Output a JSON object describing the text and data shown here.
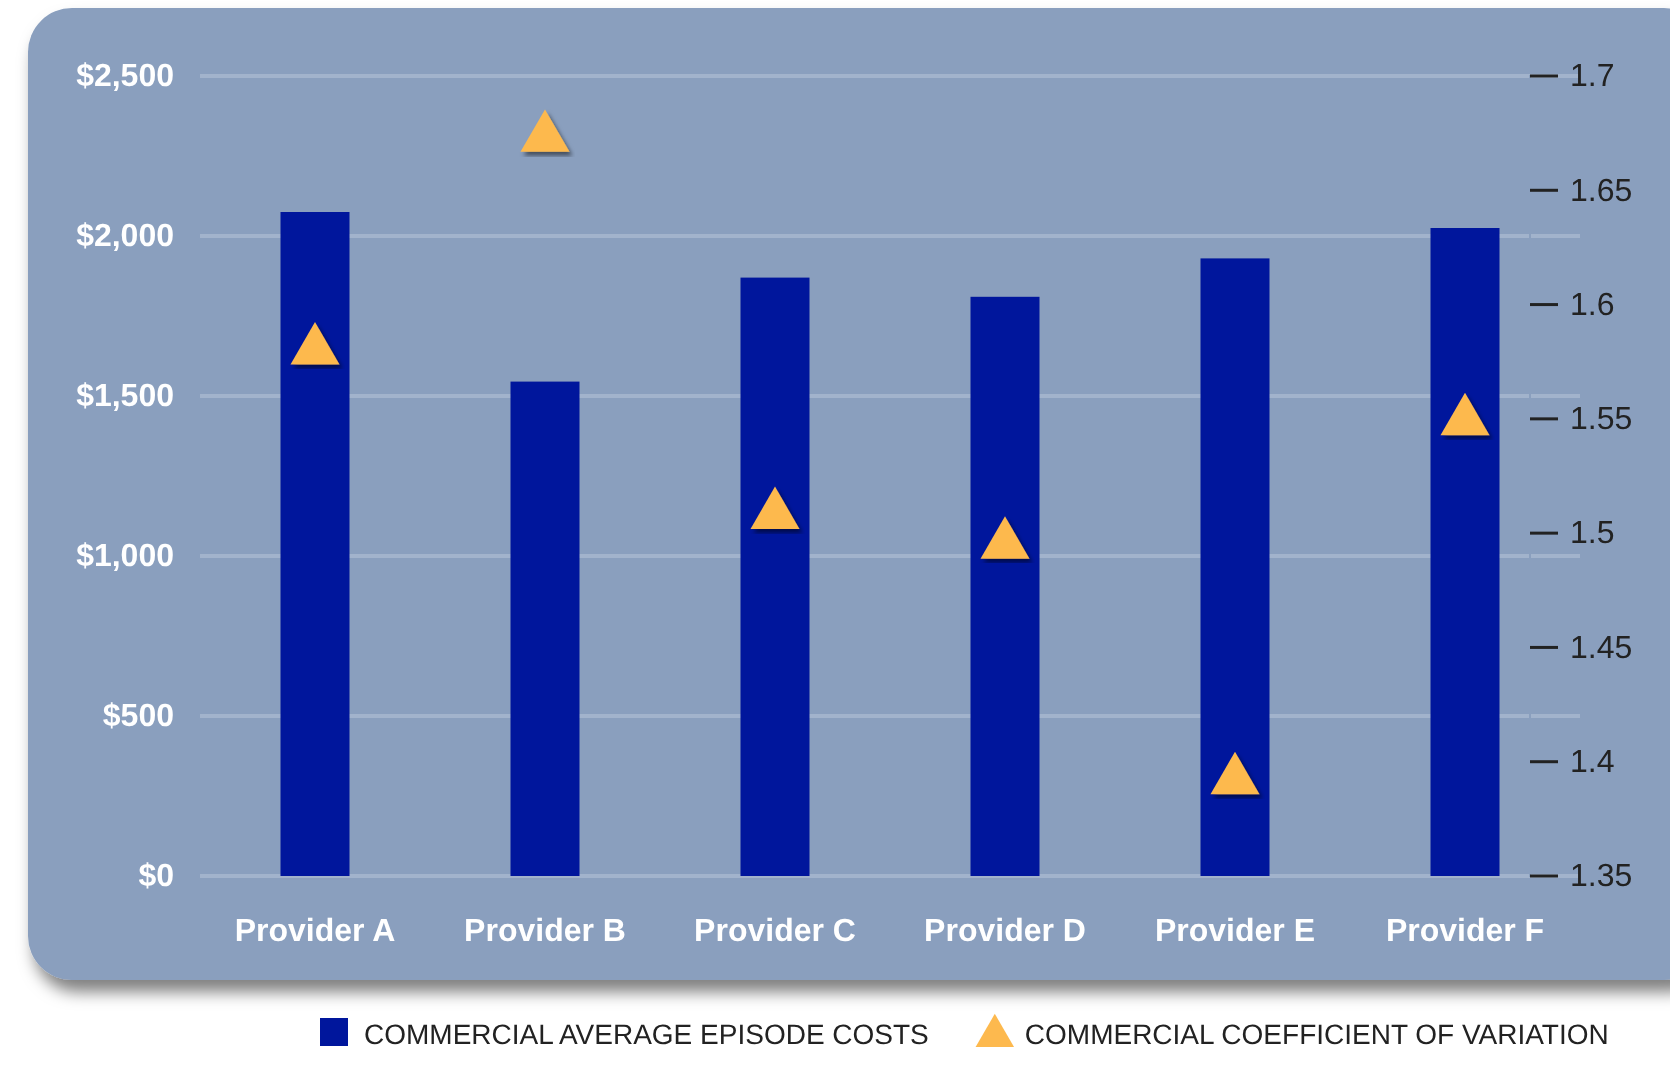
{
  "chart_data": {
    "type": "bar",
    "categories": [
      "Provider A",
      "Provider B",
      "Provider C",
      "Provider D",
      "Provider E",
      "Provider F"
    ],
    "series": [
      {
        "name": "COMMERCIAL AVERAGE EPISODE COSTS",
        "color": "#00169c",
        "values": [
          2075,
          1545,
          1870,
          1810,
          1930,
          2025
        ]
      },
      {
        "name": "COMMERCIAL COEFFICIENT OF VARIATION",
        "type": "scatter",
        "axis": "y2",
        "color": "#fdb94e",
        "values": [
          1.58,
          1.673,
          1.508,
          1.495,
          1.392,
          1.549
        ]
      }
    ],
    "ylim": [
      0,
      2500
    ],
    "yticks": [
      {
        "value": 0,
        "label": "$0"
      },
      {
        "value": 500,
        "label": "$500"
      },
      {
        "value": 1000,
        "label": "$1,000"
      },
      {
        "value": 1500,
        "label": "$1,500"
      },
      {
        "value": 2000,
        "label": "$2,000"
      },
      {
        "value": 2500,
        "label": "$2,500"
      }
    ],
    "y2lim": [
      1.35,
      1.7
    ],
    "y2ticks": [
      1.35,
      1.4,
      1.45,
      1.5,
      1.55,
      1.6,
      1.65,
      1.7
    ],
    "grid": "y",
    "legend": "bottom",
    "marker": "triangle"
  }
}
